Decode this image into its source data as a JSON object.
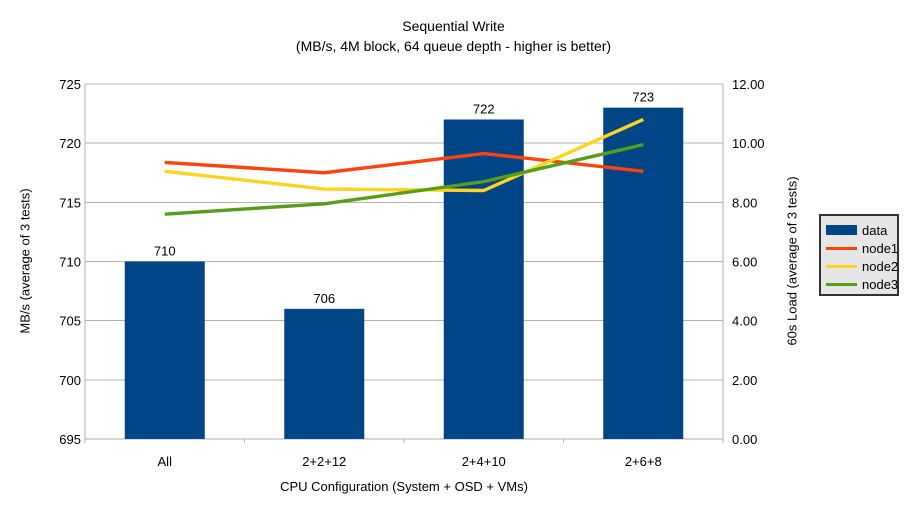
{
  "chart_data": {
    "type": "combo-bar-line",
    "title_line1": "Sequential Write",
    "title_line2": "(MB/s, 4M block, 64 queue depth - higher is better)",
    "title": "Sequential Write (MB/s, 4M block, 64 queue depth - higher is better)",
    "xlabel": "CPU Configuration (System + OSD + VMs)",
    "ylabel_left": "MB/s (average of 3 tests)",
    "ylabel_right": "60s Load (average of 3 tests)",
    "categories": [
      "All",
      "2+2+12",
      "2+4+10",
      "2+6+8"
    ],
    "series": [
      {
        "name": "data",
        "type": "bar",
        "axis": "left",
        "color": "#004586",
        "values": [
          710,
          706,
          722,
          723
        ],
        "show_labels": true
      },
      {
        "name": "node1",
        "type": "line",
        "axis": "right",
        "color": "#ff420e",
        "values": [
          9.35,
          9.0,
          9.65,
          9.05
        ]
      },
      {
        "name": "node2",
        "type": "line",
        "axis": "right",
        "color": "#ffd320",
        "values": [
          9.05,
          8.45,
          8.4,
          10.8
        ]
      },
      {
        "name": "node3",
        "type": "line",
        "axis": "right",
        "color": "#579d1c",
        "values": [
          7.6,
          7.95,
          8.7,
          9.95
        ]
      }
    ],
    "axis_left": {
      "min": 695,
      "max": 725,
      "step": 5,
      "decimals": 0,
      "tick_labels": [
        "695",
        "700",
        "705",
        "710",
        "715",
        "720",
        "725"
      ]
    },
    "axis_right": {
      "min": 0,
      "max": 12,
      "step": 2,
      "decimals": 2,
      "tick_labels": [
        "0.00",
        "2.00",
        "4.00",
        "6.00",
        "8.00",
        "10.00",
        "12.00"
      ]
    },
    "grid": true,
    "legend_position": "right",
    "colors": {
      "background": "#ffffff",
      "grid": "#b3b3b3",
      "axis": "#b3b3b3",
      "text": "#000000",
      "legend_bg": "#e6e6e6",
      "legend_border": "#333333"
    }
  }
}
